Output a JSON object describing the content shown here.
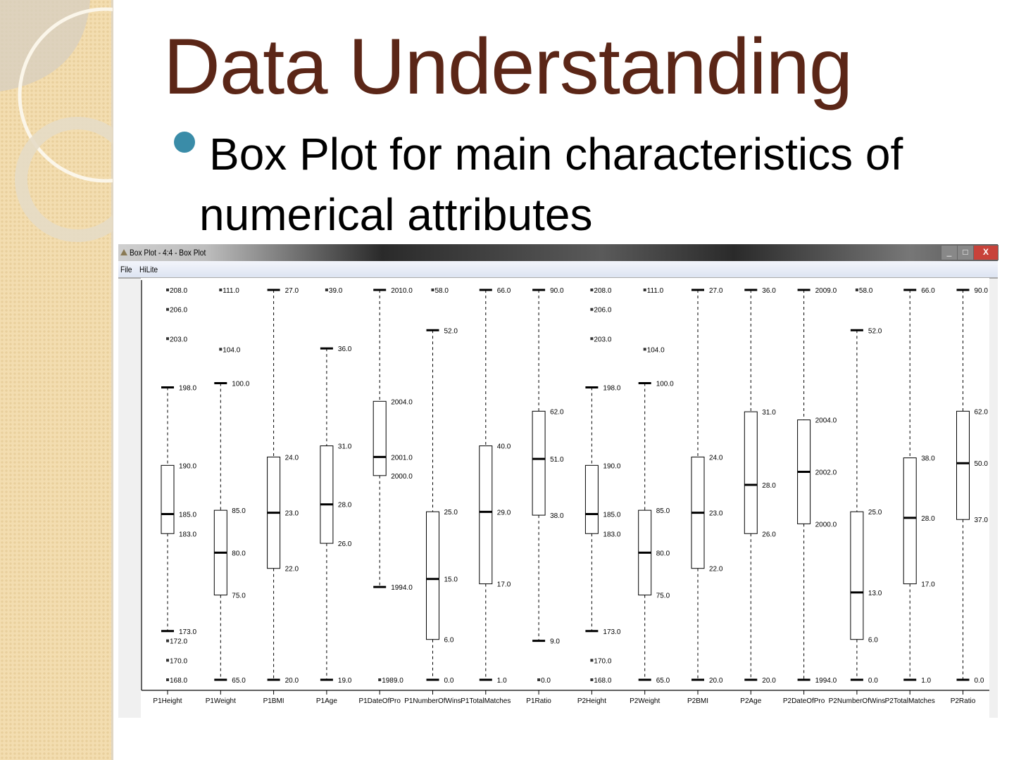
{
  "slide": {
    "title": "Data Understanding",
    "bullet": "Box Plot for main characteristics of numerical attributes",
    "bullet_color": "#3a8ca8",
    "title_color": "#5b2617"
  },
  "window": {
    "title": "Box Plot - 4:4 - Box Plot",
    "menu": [
      "File",
      "HiLite"
    ],
    "buttons": {
      "minimize": "_",
      "maximize": "□",
      "close": "X"
    }
  },
  "chart_data": {
    "type": "boxplot",
    "note_scale": "each column independently scaled",
    "columns": [
      {
        "name": "P1Height",
        "whisker_low": 173,
        "q1": 183,
        "median": 185,
        "q3": 190,
        "whisker_high": 198,
        "outliers": [
          168,
          170,
          172,
          203,
          206,
          208
        ]
      },
      {
        "name": "P1Weight",
        "whisker_low": 65,
        "q1": 75,
        "median": 80,
        "q3": 85,
        "whisker_high": 100,
        "outliers": [
          104,
          111
        ]
      },
      {
        "name": "P1BMI",
        "whisker_low": 20,
        "q1": 22,
        "median": 23,
        "q3": 24,
        "whisker_high": 27,
        "outliers": []
      },
      {
        "name": "P1Age",
        "whisker_low": 19,
        "q1": 26,
        "median": 28,
        "q3": 31,
        "whisker_high": 36,
        "outliers": [
          39
        ]
      },
      {
        "name": "P1DateOfPro",
        "whisker_low": 1994,
        "q1": 2000,
        "median": 2001,
        "q3": 2004,
        "whisker_high": 2010,
        "outliers": [
          1989
        ]
      },
      {
        "name": "P1NumberOfWins",
        "whisker_low": 0,
        "q1": 6,
        "median": 15,
        "q3": 25,
        "whisker_high": 52,
        "outliers": [
          58
        ]
      },
      {
        "name": "P1TotalMatches",
        "whisker_low": 1,
        "q1": 17,
        "median": 29,
        "q3": 40,
        "whisker_high": 66,
        "outliers": []
      },
      {
        "name": "P1Ratio",
        "whisker_low": 9,
        "q1": 38,
        "median": 51,
        "q3": 62,
        "whisker_high": 90,
        "outliers": [
          0
        ]
      },
      {
        "name": "P2Height",
        "whisker_low": 173,
        "q1": 183,
        "median": 185,
        "q3": 190,
        "whisker_high": 198,
        "outliers": [
          168,
          170,
          203,
          206,
          208
        ]
      },
      {
        "name": "P2Weight",
        "whisker_low": 65,
        "q1": 75,
        "median": 80,
        "q3": 85,
        "whisker_high": 100,
        "outliers": [
          104,
          111
        ]
      },
      {
        "name": "P2BMI",
        "whisker_low": 20,
        "q1": 22,
        "median": 23,
        "q3": 24,
        "whisker_high": 27,
        "outliers": []
      },
      {
        "name": "P2Age",
        "whisker_low": 20,
        "q1": 26,
        "median": 28,
        "q3": 31,
        "whisker_high": 36,
        "outliers": []
      },
      {
        "name": "P2DateOfPro",
        "whisker_low": 1994,
        "q1": 2000,
        "median": 2002,
        "q3": 2004,
        "whisker_high": 2009,
        "outliers": []
      },
      {
        "name": "P2NumberOfWins",
        "whisker_low": 0,
        "q1": 6,
        "median": 13,
        "q3": 25,
        "whisker_high": 52,
        "outliers": [
          58
        ]
      },
      {
        "name": "P2TotalMatches",
        "whisker_low": 1,
        "q1": 17,
        "median": 28,
        "q3": 38,
        "whisker_high": 66,
        "outliers": []
      },
      {
        "name": "P2Ratio",
        "whisker_low": 0,
        "q1": 37,
        "median": 50,
        "q3": 62,
        "whisker_high": 90,
        "outliers": []
      }
    ]
  }
}
